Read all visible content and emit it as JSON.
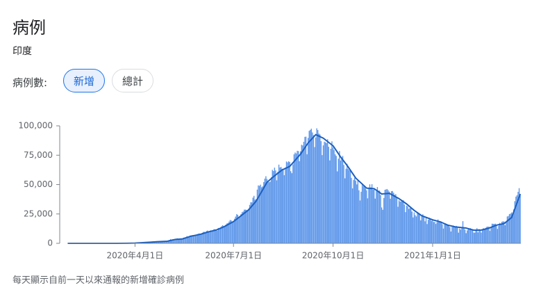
{
  "title": "病例",
  "subtitle": "印度",
  "filter_label": "病例數:",
  "buttons": [
    "新增",
    "總計"
  ],
  "footnote": "每天顯示自前一天以來通報的新增確診病例",
  "chart_data": {
    "type": "bar",
    "categories": [
      "2020-01-30",
      "2020-01-31",
      "2020-02-01",
      "2020-02-02",
      "2020-02-03",
      "2020-02-04",
      "2020-02-05",
      "2020-02-06",
      "2020-02-07",
      "2020-02-08",
      "2020-02-09",
      "2020-02-10",
      "2020-02-11",
      "2020-02-12",
      "2020-02-13",
      "2020-02-14",
      "2020-02-15",
      "2020-02-16",
      "2020-02-17",
      "2020-02-18",
      "2020-02-19",
      "2020-02-20",
      "2020-02-21",
      "2020-02-22",
      "2020-02-23",
      "2020-02-24",
      "2020-02-25",
      "2020-02-26",
      "2020-02-27",
      "2020-02-28",
      "2020-02-29",
      "2020-03-01",
      "2020-03-02",
      "2020-03-03",
      "2020-03-04",
      "2020-03-05",
      "2020-03-06",
      "2020-03-07",
      "2020-03-08",
      "2020-03-09",
      "2020-03-10",
      "2020-03-11",
      "2020-03-12",
      "2020-03-13",
      "2020-03-14",
      "2020-03-15",
      "2020-03-16",
      "2020-03-17",
      "2020-03-18",
      "2020-03-19",
      "2020-03-20",
      "2020-03-21",
      "2020-03-22",
      "2020-03-23",
      "2020-03-24",
      "2020-03-25",
      "2020-03-26",
      "2020-03-27",
      "2020-03-28",
      "2020-03-29",
      "2020-03-30",
      "2020-03-31",
      "2020-04-01",
      "2020-04-02",
      "2020-04-03",
      "2020-04-04",
      "2020-04-05",
      "2020-04-06",
      "2020-04-07",
      "2020-04-08",
      "2020-04-09",
      "2020-04-10",
      "2020-04-11",
      "2020-04-12",
      "2020-04-13",
      "2020-04-14",
      "2020-04-15",
      "2020-04-16",
      "2020-04-17",
      "2020-04-18",
      "2020-04-19",
      "2020-04-20",
      "2020-04-21",
      "2020-04-22",
      "2020-04-23",
      "2020-04-24",
      "2020-04-25",
      "2020-04-26",
      "2020-04-27",
      "2020-04-28",
      "2020-04-29",
      "2020-04-30",
      "2020-05-01",
      "2020-05-02",
      "2020-05-03",
      "2020-05-04",
      "2020-05-05",
      "2020-05-06",
      "2020-05-07",
      "2020-05-08",
      "2020-05-09",
      "2020-05-10",
      "2020-05-11",
      "2020-05-12",
      "2020-05-13",
      "2020-05-14",
      "2020-05-15",
      "2020-05-16",
      "2020-05-17",
      "2020-05-18",
      "2020-05-19",
      "2020-05-20",
      "2020-05-21",
      "2020-05-22",
      "2020-05-23",
      "2020-05-24",
      "2020-05-25",
      "2020-05-26",
      "2020-05-27",
      "2020-05-28",
      "2020-05-29",
      "2020-05-30",
      "2020-05-31",
      "2020-06-01",
      "2020-06-02",
      "2020-06-03",
      "2020-06-04",
      "2020-06-05",
      "2020-06-06",
      "2020-06-07",
      "2020-06-08",
      "2020-06-09",
      "2020-06-10",
      "2020-06-11",
      "2020-06-12",
      "2020-06-13",
      "2020-06-14",
      "2020-06-15",
      "2020-06-16",
      "2020-06-17",
      "2020-06-18",
      "2020-06-19",
      "2020-06-20",
      "2020-06-21",
      "2020-06-22",
      "2020-06-23",
      "2020-06-24",
      "2020-06-25",
      "2020-06-26",
      "2020-06-27",
      "2020-06-28",
      "2020-06-29",
      "2020-06-30",
      "2020-07-01",
      "2020-07-02",
      "2020-07-03",
      "2020-07-04",
      "2020-07-05",
      "2020-07-06",
      "2020-07-07",
      "2020-07-08",
      "2020-07-09",
      "2020-07-10",
      "2020-07-11",
      "2020-07-12",
      "2020-07-13",
      "2020-07-14",
      "2020-07-15",
      "2020-07-16",
      "2020-07-17",
      "2020-07-18",
      "2020-07-19",
      "2020-07-20",
      "2020-07-21",
      "2020-07-22",
      "2020-07-23",
      "2020-07-24",
      "2020-07-25",
      "2020-07-26",
      "2020-07-27",
      "2020-07-28",
      "2020-07-29",
      "2020-07-30",
      "2020-07-31",
      "2020-08-01",
      "2020-08-02",
      "2020-08-03",
      "2020-08-04",
      "2020-08-05",
      "2020-08-06",
      "2020-08-07",
      "2020-08-08",
      "2020-08-09",
      "2020-08-10",
      "2020-08-11",
      "2020-08-12",
      "2020-08-13",
      "2020-08-14",
      "2020-08-15",
      "2020-08-16",
      "2020-08-17",
      "2020-08-18",
      "2020-08-19",
      "2020-08-20",
      "2020-08-21",
      "2020-08-22",
      "2020-08-23",
      "2020-08-24",
      "2020-08-25",
      "2020-08-26",
      "2020-08-27",
      "2020-08-28",
      "2020-08-29",
      "2020-08-30",
      "2020-08-31",
      "2020-09-01",
      "2020-09-02",
      "2020-09-03",
      "2020-09-04",
      "2020-09-05",
      "2020-09-06",
      "2020-09-07",
      "2020-09-08",
      "2020-09-09",
      "2020-09-10",
      "2020-09-11",
      "2020-09-12",
      "2020-09-13",
      "2020-09-14",
      "2020-09-15",
      "2020-09-16",
      "2020-09-17",
      "2020-09-18",
      "2020-09-19",
      "2020-09-20",
      "2020-09-21",
      "2020-09-22",
      "2020-09-23",
      "2020-09-24",
      "2020-09-25",
      "2020-09-26",
      "2020-09-27",
      "2020-09-28",
      "2020-09-29",
      "2020-09-30",
      "2020-10-01",
      "2020-10-02",
      "2020-10-03",
      "2020-10-04",
      "2020-10-05",
      "2020-10-06",
      "2020-10-07",
      "2020-10-08",
      "2020-10-09",
      "2020-10-10",
      "2020-10-11",
      "2020-10-12",
      "2020-10-13",
      "2020-10-14",
      "2020-10-15",
      "2020-10-16",
      "2020-10-17",
      "2020-10-18",
      "2020-10-19",
      "2020-10-20",
      "2020-10-21",
      "2020-10-22",
      "2020-10-23",
      "2020-10-24",
      "2020-10-25",
      "2020-10-26",
      "2020-10-27",
      "2020-10-28",
      "2020-10-29",
      "2020-10-30",
      "2020-10-31",
      "2020-11-01",
      "2020-11-02",
      "2020-11-03",
      "2020-11-04",
      "2020-11-05",
      "2020-11-06",
      "2020-11-07",
      "2020-11-08",
      "2020-11-09",
      "2020-11-10",
      "2020-11-11",
      "2020-11-12",
      "2020-11-13",
      "2020-11-14",
      "2020-11-15",
      "2020-11-16",
      "2020-11-17",
      "2020-11-18",
      "2020-11-19",
      "2020-11-20",
      "2020-11-21",
      "2020-11-22",
      "2020-11-23",
      "2020-11-24",
      "2020-11-25",
      "2020-11-26",
      "2020-11-27",
      "2020-11-28",
      "2020-11-29",
      "2020-11-30",
      "2020-12-01",
      "2020-12-02",
      "2020-12-03",
      "2020-12-04",
      "2020-12-05",
      "2020-12-06",
      "2020-12-07",
      "2020-12-08",
      "2020-12-09",
      "2020-12-10",
      "2020-12-11",
      "2020-12-12",
      "2020-12-13",
      "2020-12-14",
      "2020-12-15",
      "2020-12-16",
      "2020-12-17",
      "2020-12-18",
      "2020-12-19",
      "2020-12-20",
      "2020-12-21",
      "2020-12-22",
      "2020-12-23",
      "2020-12-24",
      "2020-12-25",
      "2020-12-26",
      "2020-12-27",
      "2020-12-28",
      "2020-12-29",
      "2020-12-30",
      "2020-12-31",
      "2021-01-01",
      "2021-01-02",
      "2021-01-03",
      "2021-01-04",
      "2021-01-05",
      "2021-01-06",
      "2021-01-07",
      "2021-01-08",
      "2021-01-09",
      "2021-01-10",
      "2021-01-11",
      "2021-01-12",
      "2021-01-13",
      "2021-01-14",
      "2021-01-15",
      "2021-01-16",
      "2021-01-17",
      "2021-01-18",
      "2021-01-19",
      "2021-01-20",
      "2021-01-21",
      "2021-01-22",
      "2021-01-23",
      "2021-01-24",
      "2021-01-25",
      "2021-01-26",
      "2021-01-27",
      "2021-01-28",
      "2021-01-29",
      "2021-01-30",
      "2021-01-31",
      "2021-02-01",
      "2021-02-02",
      "2021-02-03",
      "2021-02-04",
      "2021-02-05",
      "2021-02-06",
      "2021-02-07",
      "2021-02-08",
      "2021-02-09",
      "2021-02-10",
      "2021-02-11",
      "2021-02-12",
      "2021-02-13",
      "2021-02-14",
      "2021-02-15",
      "2021-02-16",
      "2021-02-17",
      "2021-02-18",
      "2021-02-19",
      "2021-02-20",
      "2021-02-21",
      "2021-02-22",
      "2021-02-23",
      "2021-02-24",
      "2021-02-25",
      "2021-02-26",
      "2021-02-27",
      "2021-02-28",
      "2021-03-01",
      "2021-03-02",
      "2021-03-03",
      "2021-03-04",
      "2021-03-05",
      "2021-03-06",
      "2021-03-07",
      "2021-03-08",
      "2021-03-09",
      "2021-03-10",
      "2021-03-11",
      "2021-03-12",
      "2021-03-13",
      "2021-03-14",
      "2021-03-15",
      "2021-03-16",
      "2021-03-17",
      "2021-03-18",
      "2021-03-19",
      "2021-03-20",
      "2021-03-21",
      "2021-03-22",
      "2021-03-23"
    ],
    "series": [
      {
        "type": "bar",
        "color": "#5e97ea",
        "values": [
          1,
          0,
          0,
          1,
          1,
          0,
          0,
          0,
          0,
          0,
          0,
          0,
          0,
          0,
          0,
          0,
          0,
          0,
          0,
          0,
          0,
          0,
          0,
          0,
          0,
          0,
          0,
          0,
          0,
          0,
          0,
          0,
          0,
          1,
          22,
          2,
          1,
          3,
          5,
          9,
          15,
          6,
          13,
          11,
          9,
          20,
          11,
          15,
          28,
          22,
          50,
          75,
          79,
          81,
          63,
          75,
          88,
          124,
          149,
          106,
          227,
          146,
          424,
          486,
          560,
          579,
          609,
          484,
          573,
          565,
          813,
          871,
          854,
          758,
          1243,
          1034,
          835,
          1076,
          1007,
          1320,
          1334,
          1553,
          1336,
          1383,
          1409,
          1684,
          1429,
          1990,
          1396,
          1543,
          1897,
          1718,
          2396,
          2564,
          2952,
          3656,
          2971,
          3602,
          3344,
          3339,
          3175,
          4311,
          3592,
          3562,
          3726,
          3941,
          3787,
          4864,
          5050,
          4630,
          6147,
          5611,
          6088,
          6654,
          6767,
          6977,
          6535,
          6387,
          6566,
          7466,
          7964,
          8380,
          8392,
          7761,
          8821,
          9633,
          9889,
          9471,
          10438,
          10884,
          9982,
          9987,
          11128,
          10956,
          11306,
          12039,
          11929,
          11058,
          10667,
          13103,
          12881,
          13586,
          14516,
          15413,
          14821,
          14933,
          15968,
          16922,
          17296,
          18552,
          19906,
          19459,
          18653,
          19148,
          20903,
          22771,
          24850,
          24248,
          22252,
          22752,
          24879,
          26506,
          27114,
          28637,
          28701,
          28498,
          28178,
          29429,
          32695,
          34956,
          34884,
          38902,
          40425,
          37148,
          37724,
          45720,
          49310,
          48916,
          49931,
          47703,
          48513,
          52123,
          55079,
          57117,
          54735,
          52972,
          52050,
          52509,
          56282,
          62538,
          61537,
          64399,
          62064,
          53601,
          60963,
          66999,
          64553,
          65002,
          63490,
          63489,
          57981,
          64531,
          69652,
          68898,
          69878,
          69239,
          61408,
          59696,
          67151,
          75760,
          77266,
          76472,
          78761,
          78512,
          69921,
          78357,
          83883,
          83341,
          86432,
          90632,
          90802,
          75809,
          89706,
          95735,
          96551,
          97570,
          94372,
          92071,
          81911,
          90123,
          97894,
          96424,
          93337,
          92605,
          86961,
          75083,
          83347,
          86508,
          86052,
          85362,
          88600,
          82170,
          70589,
          80472,
          86821,
          81484,
          79476,
          75829,
          74442,
          61267,
          72049,
          78524,
          70496,
          73272,
          74383,
          66732,
          55342,
          63509,
          67708,
          63371,
          62212,
          61871,
          55722,
          46790,
          54044,
          55839,
          53370,
          50129,
          53370,
          45149,
          36469,
          43893,
          49881,
          48648,
          48268,
          46963,
          45231,
          38310,
          46253,
          50210,
          47638,
          50357,
          45674,
          45903,
          38074,
          44281,
          47905,
          44879,
          44878,
          41100,
          30548,
          28555,
          38617,
          45576,
          45882,
          46232,
          45209,
          44059,
          37975,
          44376,
          44489,
          43082,
          41322,
          41810,
          38772,
          31118,
          36604,
          35551,
          35668,
          36594,
          36652,
          32981,
          26567,
          32080,
          31521,
          29398,
          30006,
          30254,
          27071,
          22065,
          26382,
          24010,
          22890,
          26624,
          25152,
          24337,
          19556,
          23950,
          24712,
          23068,
          18732,
          22272,
          16432,
          20021,
          21822,
          20549,
          19078,
          20035,
          18177,
          18177,
          16504,
          18088,
          20346,
          18139,
          18222,
          18645,
          16311,
          12584,
          15968,
          16946,
          15590,
          15158,
          15144,
          13788,
          10064,
          13823,
          15223,
          14545,
          14256,
          14849,
          13203,
          9102,
          12689,
          11666,
          13000,
          18855,
          13052,
          11629,
          8635,
          11039,
          12899,
          12408,
          12923,
          11713,
          12059,
          9110,
          9093,
          11067,
          12923,
          9309,
          12143,
          11427,
          9121,
          11610,
          12881,
          11610,
          13193,
          13993,
          14264,
          14199,
          10584,
          13742,
          16738,
          16577,
          16488,
          16752,
          15510,
          12286,
          14989,
          17407,
          16838,
          18327,
          18711,
          18599,
          15388,
          17921,
          22854,
          23285,
          24882,
          25320,
          26291,
          24492,
          28903,
          35871,
          39726,
          40953,
          43846,
          46951,
          40715
        ]
      },
      {
        "type": "line",
        "color": "#1b5fbf",
        "x": [
          "2020-01-30",
          "2020-03-01",
          "2020-03-15",
          "2020-03-25",
          "2020-04-01",
          "2020-04-08",
          "2020-04-15",
          "2020-04-22",
          "2020-05-01",
          "2020-05-08",
          "2020-05-15",
          "2020-05-22",
          "2020-06-01",
          "2020-06-08",
          "2020-06-15",
          "2020-06-22",
          "2020-07-01",
          "2020-07-08",
          "2020-07-15",
          "2020-07-22",
          "2020-08-01",
          "2020-08-08",
          "2020-08-15",
          "2020-08-22",
          "2020-09-01",
          "2020-09-08",
          "2020-09-15",
          "2020-09-22",
          "2020-10-01",
          "2020-10-08",
          "2020-10-15",
          "2020-10-22",
          "2020-11-01",
          "2020-11-08",
          "2020-11-15",
          "2020-11-22",
          "2020-12-01",
          "2020-12-08",
          "2020-12-15",
          "2020-12-22",
          "2021-01-01",
          "2021-01-08",
          "2021-01-15",
          "2021-01-22",
          "2021-02-01",
          "2021-02-08",
          "2021-02-15",
          "2021-02-22",
          "2021-03-01",
          "2021-03-08",
          "2021-03-15",
          "2021-03-23"
        ],
        "values": [
          0,
          0,
          12,
          80,
          200,
          560,
          950,
          1380,
          1800,
          3300,
          3800,
          5900,
          7800,
          9800,
          11300,
          14000,
          18500,
          23500,
          28500,
          36000,
          52000,
          57500,
          62500,
          65500,
          76000,
          85500,
          92500,
          89500,
          83000,
          73500,
          65000,
          55500,
          47000,
          46500,
          42000,
          42500,
          38000,
          33500,
          28000,
          23500,
          20000,
          18300,
          15500,
          14000,
          13000,
          11200,
          11300,
          12900,
          15500,
          16800,
          22000,
          42000
        ]
      }
    ],
    "ylim": [
      0,
      100000
    ],
    "yticks": [
      0,
      {
        "value": 25000,
        "label": "25,000"
      },
      {
        "value": 50000,
        "label": "50,000"
      },
      {
        "value": 75000,
        "label": "75,000"
      },
      {
        "value": 100000,
        "label": "100,000"
      }
    ],
    "xticks": [
      {
        "value": "2020-04-01",
        "label": "2020年4月1日"
      },
      {
        "value": "2020-07-01",
        "label": "2020年7月1日"
      },
      {
        "value": "2020-10-01",
        "label": "2020年10月1日"
      },
      {
        "value": "2021-01-01",
        "label": "2021年1月1日"
      }
    ],
    "grid": false
  }
}
